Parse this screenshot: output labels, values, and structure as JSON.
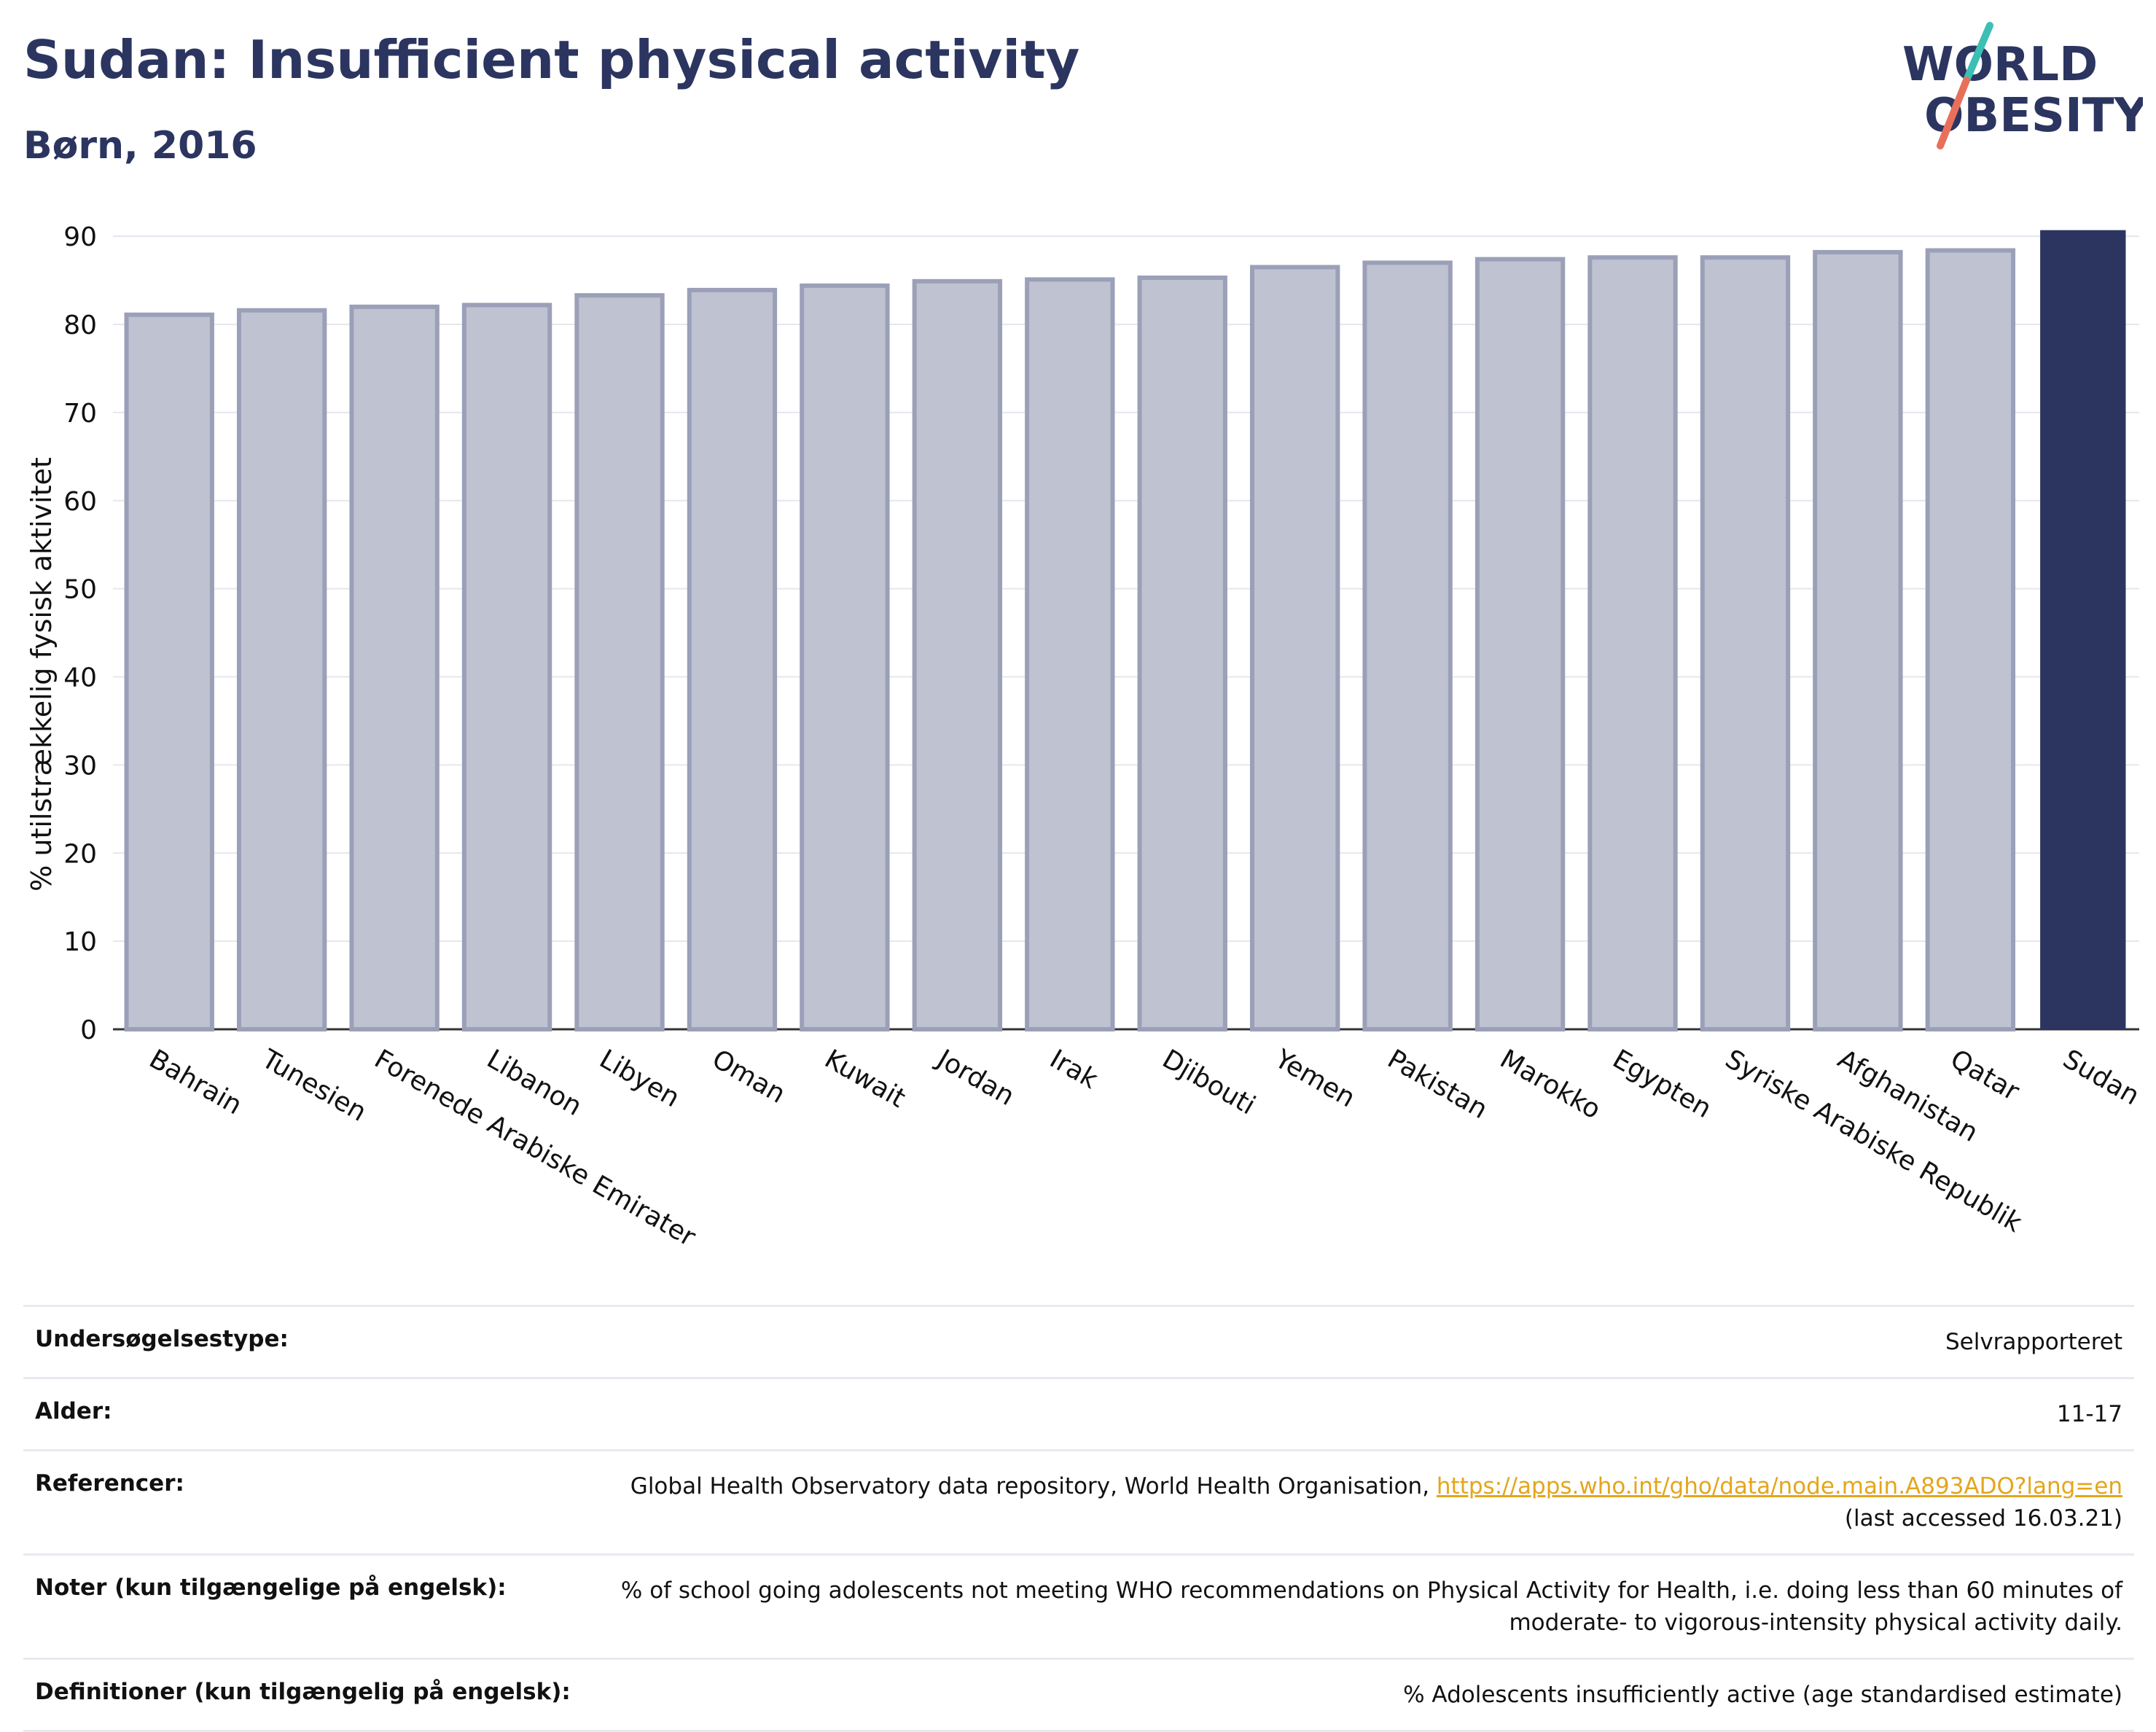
{
  "header": {
    "title": "Sudan: Insufficient physical activity",
    "subtitle": "Børn, 2016"
  },
  "logo": {
    "line1": "WORLD",
    "line2": "OBESITY",
    "text_color": "#2b3560",
    "slash_color_top": "#3cbfb5",
    "slash_color_bottom": "#e8705a"
  },
  "chart_data": {
    "type": "bar",
    "categories": [
      "Bahrain",
      "Tunesien",
      "Forenede Arabiske Emirater",
      "Libanon",
      "Libyen",
      "Oman",
      "Kuwait",
      "Jordan",
      "Irak",
      "Djibouti",
      "Yemen",
      "Pakistan",
      "Marokko",
      "Egypten",
      "Syriske Arabiske Republik",
      "Afghanistan",
      "Qatar",
      "Sudan"
    ],
    "values": [
      81.1,
      81.6,
      82.0,
      82.2,
      83.3,
      83.9,
      84.4,
      84.9,
      85.1,
      85.3,
      86.5,
      87.0,
      87.4,
      87.6,
      87.6,
      88.2,
      88.4,
      90.7
    ],
    "highlight": "Sudan",
    "ylabel": "% utilstrækkelig fysisk aktivitet",
    "xlabel": "",
    "ylim": [
      0,
      92
    ],
    "yticks": [
      0,
      10,
      20,
      30,
      40,
      50,
      60,
      70,
      80,
      90
    ],
    "grid": true,
    "colors": {
      "bar_fill": "#bfc2d0",
      "bar_stroke": "#9ba0b8",
      "highlight": "#2b3560"
    }
  },
  "info": {
    "rows": [
      {
        "label": "Undersøgelsestype:",
        "value": "Selvrapporteret"
      },
      {
        "label": "Alder:",
        "value": "11-17"
      },
      {
        "label": "Referencer:",
        "value_pre": "Global Health Observatory data repository, World Health Organisation, ",
        "link": "https://apps.who.int/gho/data/node.main.A893ADO?lang=en",
        "value_post": "(last accessed 16.03.21)"
      },
      {
        "label": "Noter (kun tilgængelige på engelsk):",
        "value": "% of school going adolescents not meeting WHO recommendations on Physical Activity for Health, i.e. doing less than 60 minutes of moderate- to vigorous-intensity physical activity daily."
      },
      {
        "label": "Definitioner (kun tilgængelig på engelsk):",
        "value": "% Adolescents insufficiently active (age standardised estimate)"
      }
    ]
  }
}
